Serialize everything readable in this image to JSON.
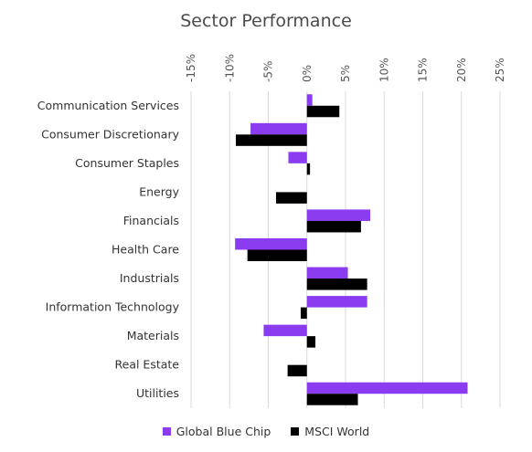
{
  "chart_data": {
    "type": "bar",
    "orientation": "horizontal",
    "title": "Sector Performance",
    "xlabel": "",
    "ylabel": "",
    "xlim": [
      -15,
      25
    ],
    "x_ticks": [
      -15,
      -10,
      -5,
      0,
      5,
      10,
      15,
      20,
      25
    ],
    "x_tick_labels": [
      "-15%",
      "-10%",
      "-5%",
      "0%",
      "5%",
      "10%",
      "15%",
      "20%",
      "25%"
    ],
    "x_axis_position": "top",
    "grid": "vertical",
    "legend_position": "bottom-center",
    "categories": [
      "Communication Services",
      "Consumer Discretionary",
      "Consumer Staples",
      "Energy",
      "Financials",
      "Health Care",
      "Industrials",
      "Information Technology",
      "Materials",
      "Real Estate",
      "Utilities"
    ],
    "series": [
      {
        "name": "Global Blue Chip",
        "color": "#8c3cf0",
        "values": [
          0.7,
          -7.3,
          -2.4,
          0,
          8.2,
          -9.3,
          5.3,
          7.8,
          -5.6,
          0,
          20.8
        ]
      },
      {
        "name": "MSCI World",
        "color": "#000000",
        "values": [
          4.2,
          -9.2,
          0.4,
          -4.0,
          7.0,
          -7.7,
          7.8,
          -0.8,
          1.1,
          -2.5,
          6.6
        ]
      }
    ]
  }
}
